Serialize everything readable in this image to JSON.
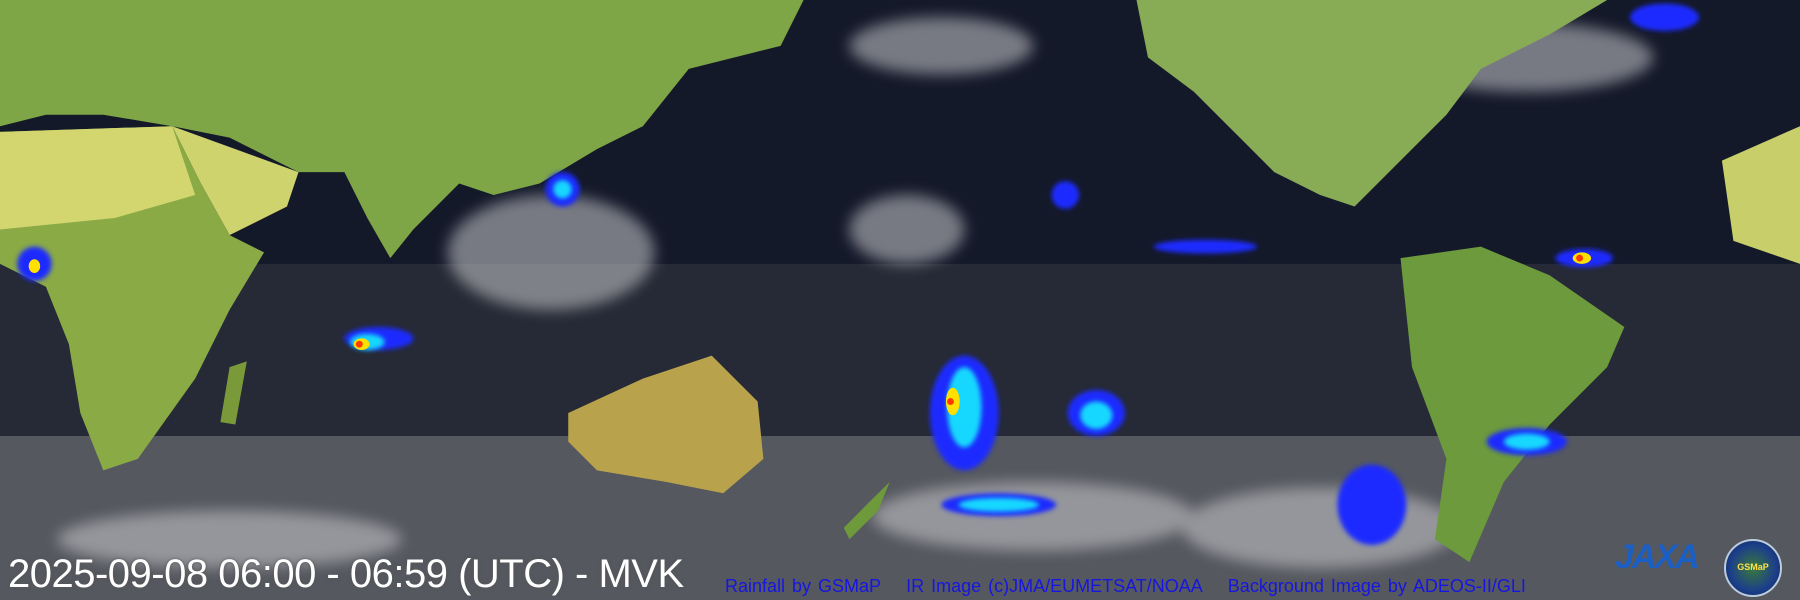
{
  "map": {
    "timestamp": "2025-09-08 06:00 - 06:59 (UTC) - MVK",
    "credits": {
      "rainfall": "Rainfall by GSMaP",
      "ir_image": "IR Image (c)JMA/EUMETSAT/NOAA",
      "background": "Background Image by ADEOS-II/GLI"
    },
    "logos": {
      "jaxa": "JAXA",
      "gsmap": "GSMaP"
    },
    "colors": {
      "ocean": "#14192a",
      "land": "#6f9a3c",
      "desert": "#c8cf6a",
      "cloud": "#d8d8d8",
      "rain_light": "#1a2bff",
      "rain_mid": "#19d8ff",
      "rain_heavy": "#ffe000",
      "rain_extreme": "#ff3a00",
      "credit_text": "#1616e0"
    }
  }
}
